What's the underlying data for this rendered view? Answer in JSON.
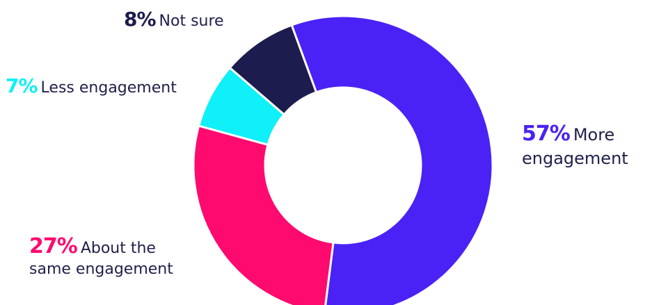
{
  "chart_data": {
    "type": "pie",
    "donut": true,
    "title": "",
    "start_angle_deg": -20.1,
    "slices": [
      {
        "key": "more",
        "pct_label": "57%",
        "value": 57,
        "label_line1": "More",
        "label_line2": "engagement",
        "color": "#4a22f5"
      },
      {
        "key": "same",
        "pct_label": "27%",
        "value": 27,
        "label_line1": "About the",
        "label_line2": "same engagement",
        "color": "#ff0a6e"
      },
      {
        "key": "less",
        "pct_label": "7%",
        "value": 7,
        "label_line1": "Less engagement",
        "label_line2": "",
        "color": "#0ff0f8"
      },
      {
        "key": "not_sure",
        "pct_label": "8%",
        "value": 8,
        "label_line1": "Not sure",
        "label_line2": "",
        "color": "#1c1c4e"
      }
    ]
  }
}
